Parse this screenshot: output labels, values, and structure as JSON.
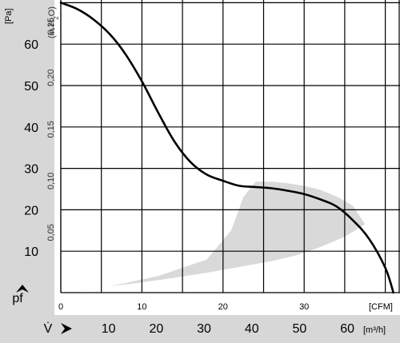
{
  "colors": {
    "side_bands": "#d7d7d7",
    "grid": "#000000",
    "curve": "#000000",
    "operating_range": "#d9d9d9",
    "background": "#ffffff"
  },
  "chart_data": {
    "type": "line",
    "title": "",
    "ylabel_unit": "[Pa]",
    "ylabel_unit_alt": "(in H2O)",
    "ylabel_symbol": "pf",
    "xlabel_unit": "[CFM]",
    "xlabel_unit_alt": "[m³/h]",
    "xlabel_symbol": "V̇",
    "xlim_cfm": [
      0,
      41
    ],
    "ylim_pa": [
      0,
      70
    ],
    "grid": true,
    "pa_ticks": [
      10,
      20,
      30,
      40,
      50,
      60
    ],
    "inh2o_ticks": [
      "0,05",
      "0,10",
      "0,15",
      "0,20",
      "0,25"
    ],
    "cfm_ticks": [
      "0",
      "10",
      "20",
      "30"
    ],
    "m3h_ticks": [
      "10",
      "20",
      "30",
      "40",
      "50",
      "60"
    ],
    "series": [
      {
        "x_cfm": [
          0,
          2,
          4,
          6,
          8,
          10,
          12,
          14,
          16,
          18,
          20,
          22,
          24,
          26,
          28,
          30,
          32,
          34,
          36,
          38,
          40,
          41
        ],
        "y_pa": [
          70,
          68.5,
          66,
          62.5,
          57.5,
          51,
          43.5,
          36.5,
          31.5,
          28.5,
          27,
          25.8,
          25.5,
          25.2,
          24.6,
          23.8,
          22.5,
          20.8,
          17.5,
          13,
          6,
          0
        ]
      }
    ],
    "operating_range": {
      "upper_x_cfm": [
        0,
        6,
        12,
        18,
        21,
        22.5,
        24,
        26,
        28,
        30,
        32,
        34,
        36,
        37.5
      ],
      "upper_y_pa": [
        0,
        1.5,
        4,
        8,
        15,
        23,
        26.8,
        26.8,
        26.4,
        25.8,
        24.8,
        23.2,
        21,
        16.5
      ],
      "lower_x_cfm": [
        37.5,
        35,
        32,
        29,
        26,
        22,
        18,
        14,
        10,
        6,
        3,
        0
      ],
      "lower_y_pa": [
        16.5,
        13.5,
        11,
        9,
        7.6,
        6.2,
        4.8,
        3.6,
        2.5,
        1.5,
        0.7,
        0
      ]
    }
  }
}
